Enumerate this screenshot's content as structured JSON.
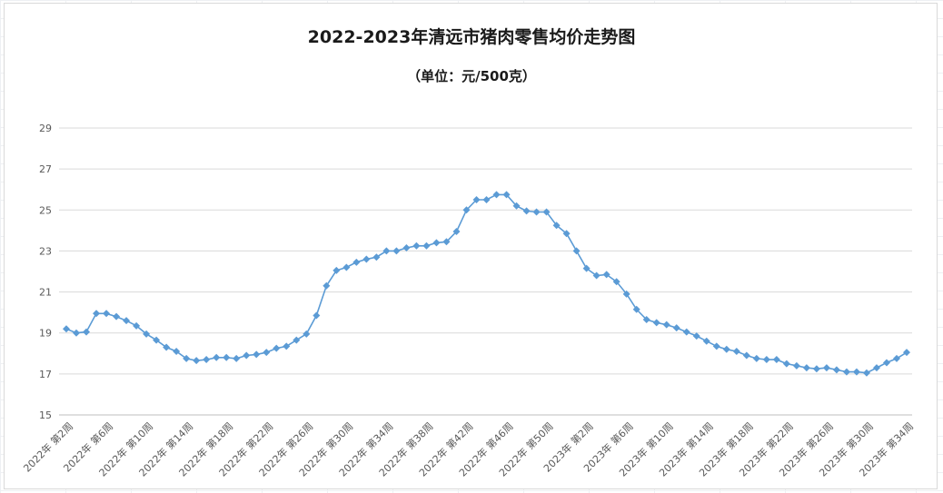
{
  "chart_data": {
    "type": "line",
    "title": "2022-2023年清远市猪肉零售均价走势图",
    "subtitle": "（单位：元/500克）",
    "xlabel": "",
    "ylabel": "",
    "ylim": [
      15,
      29
    ],
    "yticks": [
      "15",
      "17",
      "19",
      "21",
      "23",
      "25",
      "27",
      "29"
    ],
    "grid": true,
    "legend": "none",
    "line_color": "#5b9bd5",
    "marker": "diamond",
    "x_tick_labels": [
      "2022年 第2周",
      "2022年 第6周",
      "2022年 第10周",
      "2022年 第14周",
      "2022年 第18周",
      "2022年 第22周",
      "2022年 第26周",
      "2022年 第30周",
      "2022年 第34周",
      "2022年 第38周",
      "2022年 第42周",
      "2022年 第46周",
      "2022年 第50周",
      "2023年 第2周",
      "2023年 第6周",
      "2023年 第10周",
      "2023年 第14周",
      "2023年 第18周",
      "2023年 第22周",
      "2023年 第26周",
      "2023年 第30周",
      "2023年 第34周"
    ],
    "tick_every": 4,
    "series": [
      {
        "values": [
          19.2,
          19.0,
          19.05,
          19.95,
          19.95,
          19.8,
          19.6,
          19.35,
          18.95,
          18.65,
          18.3,
          18.1,
          17.75,
          17.65,
          17.7,
          17.8,
          17.8,
          17.75,
          17.9,
          17.95,
          18.05,
          18.25,
          18.35,
          18.65,
          18.95,
          19.85,
          21.3,
          22.05,
          22.2,
          22.45,
          22.6,
          22.7,
          23.0,
          23.0,
          23.15,
          23.25,
          23.25,
          23.4,
          23.45,
          23.95,
          25.0,
          25.5,
          25.5,
          25.75,
          25.75,
          25.2,
          24.95,
          24.9,
          24.9,
          24.25,
          23.85,
          23.0,
          22.15,
          21.8,
          21.85,
          21.5,
          20.9,
          20.15,
          19.65,
          19.5,
          19.4,
          19.25,
          19.05,
          18.85,
          18.6,
          18.35,
          18.2,
          18.1,
          17.9,
          17.75,
          17.7,
          17.7,
          17.5,
          17.4,
          17.3,
          17.25,
          17.3,
          17.2,
          17.1,
          17.1,
          17.05,
          17.3,
          17.55,
          17.75,
          18.05
        ]
      }
    ]
  }
}
